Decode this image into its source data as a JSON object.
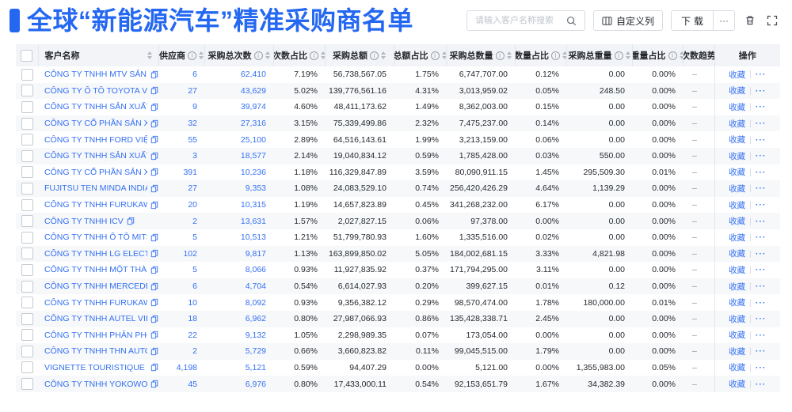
{
  "header": {
    "title": "全球“新能源汽车”精准采购商名单",
    "search_placeholder": "请输入客户名称搜索",
    "custom_columns_label": "自定义列",
    "download_label": "下载",
    "more_label": "···",
    "accent_color": "#2468f2",
    "link_color": "#3370f2"
  },
  "table": {
    "columns": [
      {
        "key": "name",
        "label": "客户名称",
        "info": false,
        "sort": true
      },
      {
        "key": "supplier",
        "label": "供应商",
        "info": true,
        "sort": true
      },
      {
        "key": "total_count",
        "label": "采购总次数",
        "info": true,
        "sort": true
      },
      {
        "key": "count_pct",
        "label": "次数占比",
        "info": true,
        "sort": true
      },
      {
        "key": "amount",
        "label": "采购总额",
        "info": true,
        "sort": true
      },
      {
        "key": "amount_pct",
        "label": "总额占比",
        "info": true,
        "sort": true
      },
      {
        "key": "qty",
        "label": "采购总数量",
        "info": true,
        "sort": true
      },
      {
        "key": "qty_pct",
        "label": "数量占比",
        "info": true,
        "sort": true
      },
      {
        "key": "weight",
        "label": "采购总重量",
        "info": true,
        "sort": true
      },
      {
        "key": "weight_pct",
        "label": "重量占比",
        "info": true,
        "sort": true
      },
      {
        "key": "trend",
        "label": "次数趋势",
        "info": false,
        "sort": false
      },
      {
        "key": "action",
        "label": "操作",
        "info": false,
        "sort": false
      }
    ],
    "trend_placeholder": "–",
    "action_labels": {
      "favorite": "收藏",
      "more": "···"
    },
    "rows": [
      {
        "name": "CÔNG TY TNHH MTV SẢN XUẤ...",
        "supplier": "6",
        "total_count": "62,410",
        "count_pct": "7.19%",
        "amount": "56,738,567.05",
        "amount_pct": "1.75%",
        "qty": "6,747,707.00",
        "qty_pct": "0.12%",
        "weight": "0.00",
        "weight_pct": "0.00%"
      },
      {
        "name": "CÔNG TY Ô TÔ TOYOTA VIỆT ...",
        "supplier": "27",
        "total_count": "43,629",
        "count_pct": "5.02%",
        "amount": "139,776,561.16",
        "amount_pct": "4.31%",
        "qty": "3,013,959.02",
        "qty_pct": "0.05%",
        "weight": "248.50",
        "weight_pct": "0.00%"
      },
      {
        "name": "CÔNG TY TNHH SẢN XUẤT VÀ ...",
        "supplier": "9",
        "total_count": "39,974",
        "count_pct": "4.60%",
        "amount": "48,411,173.62",
        "amount_pct": "1.49%",
        "qty": "8,362,003.00",
        "qty_pct": "0.15%",
        "weight": "0.00",
        "weight_pct": "0.00%"
      },
      {
        "name": "CÔNG TY CỔ PHẦN SẢN XUẤT...",
        "supplier": "32",
        "total_count": "27,316",
        "count_pct": "3.15%",
        "amount": "75,339,499.86",
        "amount_pct": "2.32%",
        "qty": "7,475,237.00",
        "qty_pct": "0.14%",
        "weight": "0.00",
        "weight_pct": "0.00%"
      },
      {
        "name": "CÔNG TY TNHH FORD VIỆT NAM",
        "supplier": "55",
        "total_count": "25,100",
        "count_pct": "2.89%",
        "amount": "64,516,143.61",
        "amount_pct": "1.99%",
        "qty": "3,213,159.00",
        "qty_pct": "0.06%",
        "weight": "0.00",
        "weight_pct": "0.00%"
      },
      {
        "name": "CÔNG TY TNHH SẢN XUẤT VÀ ...",
        "supplier": "3",
        "total_count": "18,577",
        "count_pct": "2.14%",
        "amount": "19,040,834.12",
        "amount_pct": "0.59%",
        "qty": "1,785,428.00",
        "qty_pct": "0.03%",
        "weight": "550.00",
        "weight_pct": "0.00%"
      },
      {
        "name": "CÔNG TY CỔ PHẦN SẢN XUẤT...",
        "supplier": "391",
        "total_count": "10,236",
        "count_pct": "1.18%",
        "amount": "116,329,847.89",
        "amount_pct": "3.59%",
        "qty": "80,090,911.15",
        "qty_pct": "1.45%",
        "weight": "295,509.30",
        "weight_pct": "0.01%"
      },
      {
        "name": "FUJITSU TEN MINDA INDIA PVT...",
        "supplier": "27",
        "total_count": "9,353",
        "count_pct": "1.08%",
        "amount": "24,083,529.10",
        "amount_pct": "0.74%",
        "qty": "256,420,426.29",
        "qty_pct": "4.64%",
        "weight": "1,139.29",
        "weight_pct": "0.00%"
      },
      {
        "name": "CÔNG TY TNHH FURUKAWA A...",
        "supplier": "20",
        "total_count": "10,315",
        "count_pct": "1.19%",
        "amount": "14,657,823.89",
        "amount_pct": "0.45%",
        "qty": "341,268,232.00",
        "qty_pct": "6.17%",
        "weight": "0.00",
        "weight_pct": "0.00%"
      },
      {
        "name": "CÔNG TY TNHH ICV",
        "supplier": "2",
        "total_count": "13,631",
        "count_pct": "1.57%",
        "amount": "2,027,827.15",
        "amount_pct": "0.06%",
        "qty": "97,378.00",
        "qty_pct": "0.00%",
        "weight": "0.00",
        "weight_pct": "0.00%"
      },
      {
        "name": "CÔNG TY TNHH Ô TÔ MITSUBI...",
        "supplier": "5",
        "total_count": "10,513",
        "count_pct": "1.21%",
        "amount": "51,799,780.93",
        "amount_pct": "1.60%",
        "qty": "1,335,516.00",
        "qty_pct": "0.02%",
        "weight": "0.00",
        "weight_pct": "0.00%"
      },
      {
        "name": "CÔNG TY TNHH LG ELECTRON...",
        "supplier": "102",
        "total_count": "9,817",
        "count_pct": "1.13%",
        "amount": "163,899,850.02",
        "amount_pct": "5.05%",
        "qty": "184,002,681.15",
        "qty_pct": "3.33%",
        "weight": "4,821.98",
        "weight_pct": "0.00%"
      },
      {
        "name": "CÔNG TY TNHH MỘT THÀNH V...",
        "supplier": "5",
        "total_count": "8,066",
        "count_pct": "0.93%",
        "amount": "11,927,835.92",
        "amount_pct": "0.37%",
        "qty": "171,794,295.00",
        "qty_pct": "3.11%",
        "weight": "0.00",
        "weight_pct": "0.00%"
      },
      {
        "name": "CÔNG TY TNHH MERCEDES-B...",
        "supplier": "6",
        "total_count": "4,704",
        "count_pct": "0.54%",
        "amount": "6,614,027.93",
        "amount_pct": "0.20%",
        "qty": "399,627.15",
        "qty_pct": "0.01%",
        "weight": "0.12",
        "weight_pct": "0.00%"
      },
      {
        "name": "CÔNG TY TNHH FURUKAWA A...",
        "supplier": "10",
        "total_count": "8,092",
        "count_pct": "0.93%",
        "amount": "9,356,382.12",
        "amount_pct": "0.29%",
        "qty": "98,570,474.00",
        "qty_pct": "1.78%",
        "weight": "180,000.00",
        "weight_pct": "0.01%"
      },
      {
        "name": "CÔNG TY TNHH AUTEL VIỆT N...",
        "supplier": "18",
        "total_count": "6,962",
        "count_pct": "0.80%",
        "amount": "27,987,066.93",
        "amount_pct": "0.86%",
        "qty": "135,428,338.71",
        "qty_pct": "2.45%",
        "weight": "0.00",
        "weight_pct": "0.00%"
      },
      {
        "name": "CÔNG TY TNHH PHÂN PHỐI T...",
        "supplier": "22",
        "total_count": "9,132",
        "count_pct": "1.05%",
        "amount": "2,298,989.35",
        "amount_pct": "0.07%",
        "qty": "173,054.00",
        "qty_pct": "0.00%",
        "weight": "0.00",
        "weight_pct": "0.00%"
      },
      {
        "name": "CÔNG TY TNHH THN AUTOPAR...",
        "supplier": "2",
        "total_count": "5,729",
        "count_pct": "0.66%",
        "amount": "3,660,823.82",
        "amount_pct": "0.11%",
        "qty": "99,045,515.00",
        "qty_pct": "1.79%",
        "weight": "0.00",
        "weight_pct": "0.00%"
      },
      {
        "name": "VIGNETTE TOURISTIQUE G UNI...",
        "supplier": "4,198",
        "total_count": "5,121",
        "count_pct": "0.59%",
        "amount": "94,407.29",
        "amount_pct": "0.00%",
        "qty": "5,121.00",
        "qty_pct": "0.00%",
        "weight": "1,355,983.00",
        "weight_pct": "0.05%"
      },
      {
        "name": "CÔNG TY TNHH YOKOWO VIỆT...",
        "supplier": "45",
        "total_count": "6,976",
        "count_pct": "0.80%",
        "amount": "17,433,000.11",
        "amount_pct": "0.54%",
        "qty": "92,153,651.79",
        "qty_pct": "1.67%",
        "weight": "34,382.39",
        "weight_pct": "0.00%"
      }
    ]
  }
}
